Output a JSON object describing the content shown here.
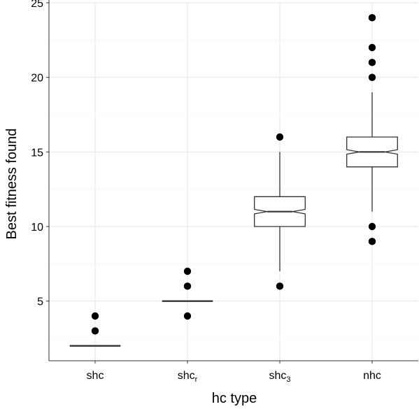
{
  "chart_data": {
    "type": "boxplot",
    "title": "",
    "xlabel": "hc type",
    "ylabel": "Best fitness found",
    "ylim": [
      1,
      25
    ],
    "yticks": [
      5,
      10,
      15,
      20,
      25
    ],
    "grid": true,
    "notched": true,
    "categories": [
      {
        "base": "shc",
        "sub": ""
      },
      {
        "base": "shc",
        "sub": "r"
      },
      {
        "base": "shc",
        "sub": "3"
      },
      {
        "base": "nhc",
        "sub": ""
      }
    ],
    "boxes": [
      {
        "q1": 2,
        "median": 2,
        "q3": 2,
        "whisker_low": 2,
        "whisker_high": 2,
        "notch_low": 2,
        "notch_high": 2,
        "outliers": [
          3,
          4
        ]
      },
      {
        "q1": 5,
        "median": 5,
        "q3": 5,
        "whisker_low": 5,
        "whisker_high": 5,
        "notch_low": 5,
        "notch_high": 5,
        "outliers": [
          4,
          6,
          7
        ]
      },
      {
        "q1": 10,
        "median": 11,
        "q3": 12,
        "whisker_low": 7,
        "whisker_high": 15,
        "notch_low": 10.85,
        "notch_high": 11.15,
        "outliers": [
          6,
          16
        ]
      },
      {
        "q1": 14,
        "median": 15,
        "q3": 16,
        "whisker_low": 11,
        "whisker_high": 19,
        "notch_low": 14.85,
        "notch_high": 15.15,
        "outliers": [
          9,
          10,
          20,
          21,
          22,
          24
        ]
      }
    ]
  }
}
